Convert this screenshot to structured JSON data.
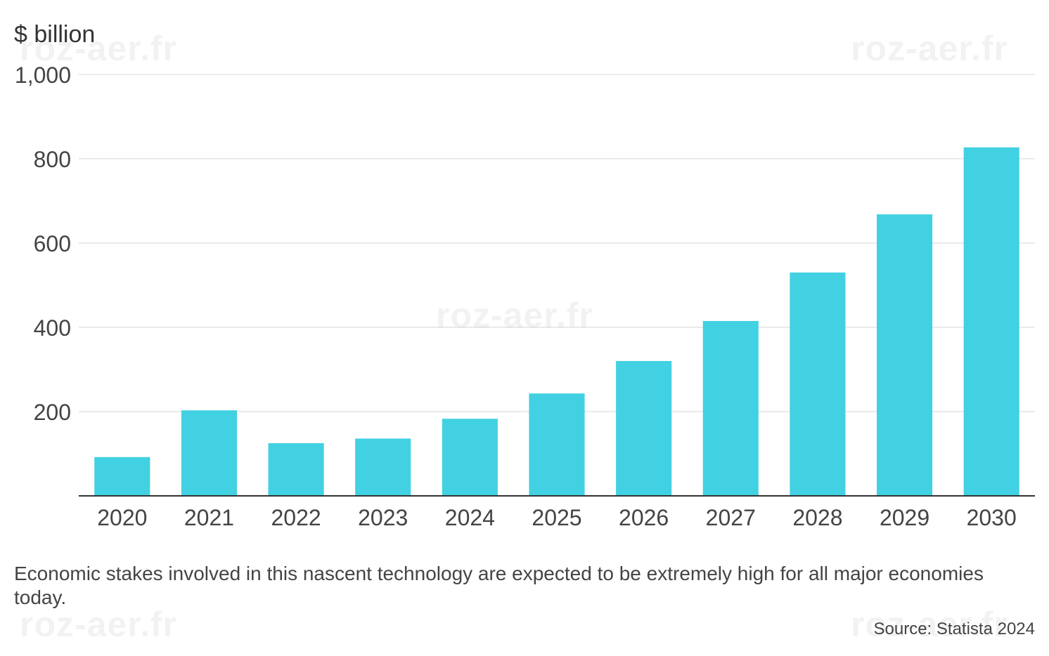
{
  "chart_data": {
    "type": "bar",
    "categories": [
      "2020",
      "2021",
      "2022",
      "2023",
      "2024",
      "2025",
      "2026",
      "2027",
      "2028",
      "2029",
      "2030"
    ],
    "values": [
      92,
      203,
      125,
      136,
      183,
      243,
      320,
      415,
      530,
      668,
      827
    ],
    "ylabel": "$ billion",
    "ylim": [
      0,
      1000
    ],
    "yticks": [
      200,
      400,
      600,
      800,
      1000
    ],
    "ytick_labels": [
      "200",
      "400",
      "600",
      "800",
      "1,000"
    ],
    "grid": true,
    "bar_color": "#42d1e2"
  },
  "caption": "Economic stakes involved in this nascent technology are expected to be extremely high for all major economies today.",
  "source": "Source: Statista 2024",
  "watermark": "roz-aer.fr"
}
